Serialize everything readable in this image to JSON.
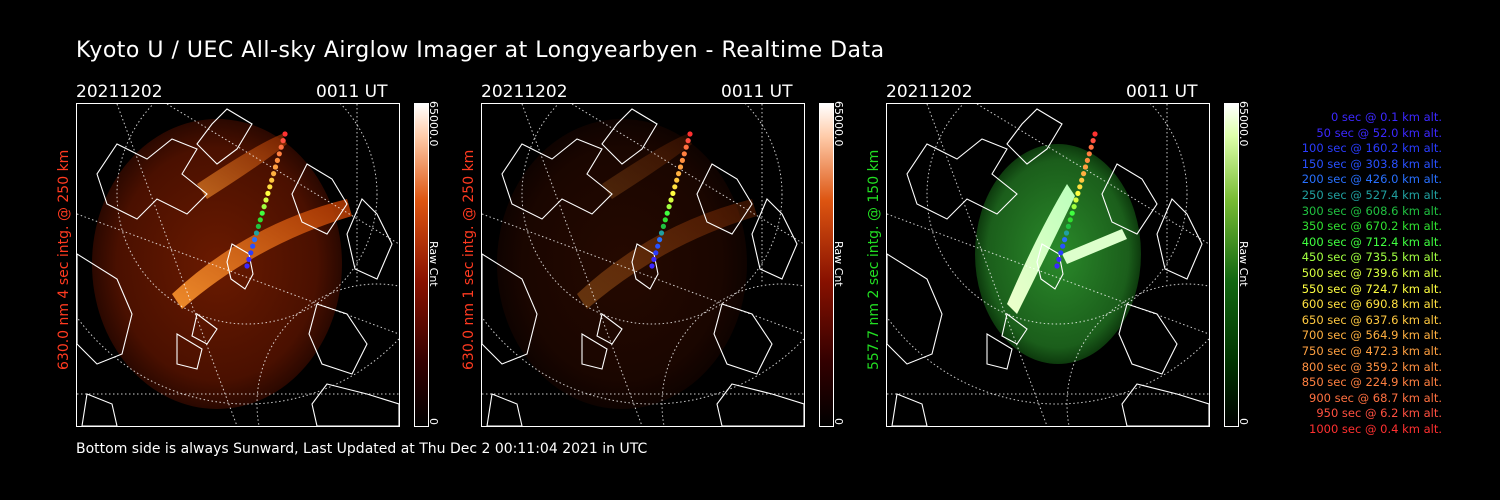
{
  "title": "Kyoto U / UEC All-sky Airglow Imager at Longyearbyen - Realtime Data",
  "footer": "Bottom side is always Sunward, Last Updated at Thu Dec  2 00:11:04 2021 in UTC",
  "panels": [
    {
      "date": "20211202",
      "time": "0011 UT",
      "side_label": "630.0 nm 4 sec intg. @ 250 km",
      "side_label_color": "#ff3a20",
      "cbar_max": "65000.0",
      "cbar_min": "0",
      "cbar_unit": "Raw Cnt",
      "cmap": "red",
      "intensity": 1.0
    },
    {
      "date": "20211202",
      "time": "0011 UT",
      "side_label": "630.0 nm 1 sec intg. @ 250 km",
      "side_label_color": "#ff3a20",
      "cbar_max": "65000.0",
      "cbar_min": "0",
      "cbar_unit": "Raw Cnt",
      "cmap": "red",
      "intensity": 0.35
    },
    {
      "date": "20211202",
      "time": "0011 UT",
      "side_label": "557.7 nm 2 sec intg. @ 150 km",
      "side_label_color": "#22dd22",
      "cbar_max": "65000.0",
      "cbar_min": "0",
      "cbar_unit": "Raw Cnt",
      "cmap": "green",
      "intensity": 1.0
    }
  ],
  "legend": [
    {
      "text": "0 sec @    0.1 km alt.",
      "color": "#3c28ff"
    },
    {
      "text": "50 sec @   52.0 km alt.",
      "color": "#3c28ff"
    },
    {
      "text": "100 sec @  160.2 km alt.",
      "color": "#2a3cff"
    },
    {
      "text": "150 sec @  303.8 km alt.",
      "color": "#2850ff"
    },
    {
      "text": "200 sec @  426.0 km alt.",
      "color": "#2870ff"
    },
    {
      "text": "250 sec @  527.4 km alt.",
      "color": "#20a0a0"
    },
    {
      "text": "300 sec @  608.6 km alt.",
      "color": "#20c040"
    },
    {
      "text": "350 sec @  670.2 km alt.",
      "color": "#30e030"
    },
    {
      "text": "400 sec @  712.4 km alt.",
      "color": "#40ff40"
    },
    {
      "text": "450 sec @  735.5 km alt.",
      "color": "#a0ff40"
    },
    {
      "text": "500 sec @  739.6 km alt.",
      "color": "#d8ff40"
    },
    {
      "text": "550 sec @  724.7 km alt.",
      "color": "#ffff40"
    },
    {
      "text": "600 sec @  690.8 km alt.",
      "color": "#ffe040"
    },
    {
      "text": "650 sec @  637.6 km alt.",
      "color": "#ffc840"
    },
    {
      "text": "700 sec @  564.9 km alt.",
      "color": "#ffb040"
    },
    {
      "text": "750 sec @  472.3 km alt.",
      "color": "#ffa040"
    },
    {
      "text": "800 sec @  359.2 km alt.",
      "color": "#ff9040"
    },
    {
      "text": "850 sec @  224.9 km alt.",
      "color": "#ff8040"
    },
    {
      "text": "900 sec @   68.7 km alt.",
      "color": "#ff7040"
    },
    {
      "text": "950 sec @    6.2 km alt.",
      "color": "#ff5040"
    },
    {
      "text": "1000 sec @    0.4 km alt.",
      "color": "#ff3030"
    }
  ]
}
